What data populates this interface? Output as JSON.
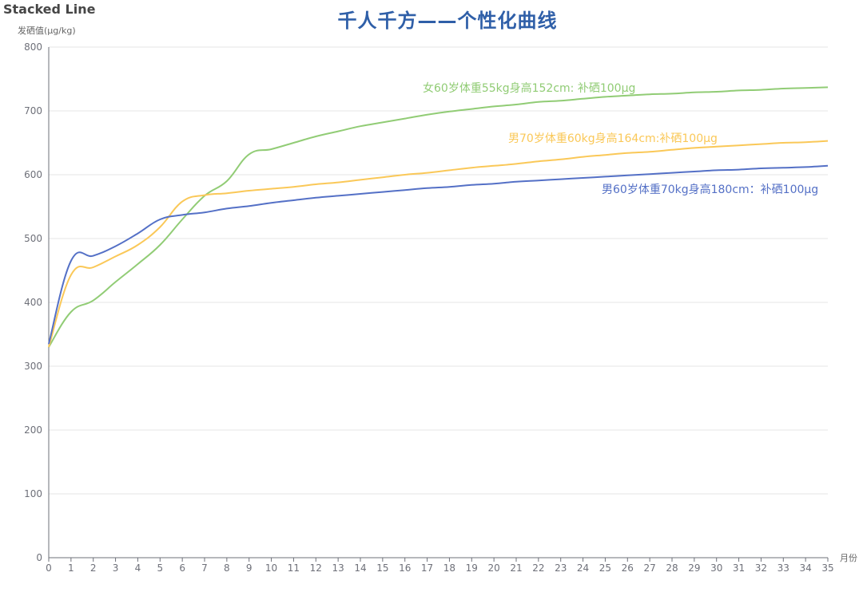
{
  "chart_data": {
    "type": "line",
    "title": "Stacked Line",
    "subtitle": "千人千方——个性化曲线",
    "xlabel": "月份",
    "ylabel": "发硒值(μg/kg)",
    "ylim": [
      0,
      800
    ],
    "yticks": [
      0,
      100,
      200,
      300,
      400,
      500,
      600,
      700,
      800
    ],
    "x": [
      0,
      1,
      2,
      3,
      4,
      5,
      6,
      7,
      8,
      9,
      10,
      11,
      12,
      13,
      14,
      15,
      16,
      17,
      18,
      19,
      20,
      21,
      22,
      23,
      24,
      25,
      26,
      27,
      28,
      29,
      30,
      31,
      32,
      33,
      34,
      35
    ],
    "grid": true,
    "legend": "inline annotations",
    "series": [
      {
        "name": "女60岁体重55kg身高152cm: 补硒100μg",
        "color": "#91cc75",
        "values": [
          330,
          385,
          403,
          432,
          460,
          490,
          530,
          567,
          590,
          632,
          640,
          650,
          660,
          668,
          676,
          682,
          688,
          694,
          699,
          703,
          707,
          710,
          714,
          716,
          719,
          722,
          724,
          726,
          727,
          729,
          730,
          732,
          733,
          735,
          736,
          737
        ]
      },
      {
        "name": "男70岁体重60kg身高164cm:补硒100μg",
        "color": "#fac858",
        "values": [
          330,
          443,
          455,
          472,
          490,
          518,
          558,
          568,
          571,
          575,
          578,
          581,
          585,
          588,
          592,
          596,
          600,
          603,
          607,
          611,
          614,
          617,
          621,
          624,
          628,
          631,
          634,
          636,
          639,
          642,
          644,
          646,
          648,
          650,
          651,
          653
        ]
      },
      {
        "name": "男60岁体重70kg身高180cm：补硒100μg",
        "color": "#5470c6",
        "values": [
          335,
          465,
          473,
          488,
          508,
          530,
          537,
          541,
          547,
          551,
          556,
          560,
          564,
          567,
          570,
          573,
          576,
          579,
          581,
          584,
          586,
          589,
          591,
          593,
          595,
          597,
          599,
          601,
          603,
          605,
          607,
          608,
          610,
          611,
          612,
          614
        ]
      }
    ]
  },
  "labels": {
    "title": "Stacked Line",
    "main_title": "千人千方——个性化曲线",
    "y_axis_name": "发硒值(μg/kg)",
    "x_axis_name": "月份",
    "series_green": "女60岁体重55kg身高152cm: 补硒100μg",
    "series_yellow": "男70岁体重60kg身高164cm:补硒100μg",
    "series_blue": "男60岁体重70kg身高180cm：补硒100μg"
  }
}
